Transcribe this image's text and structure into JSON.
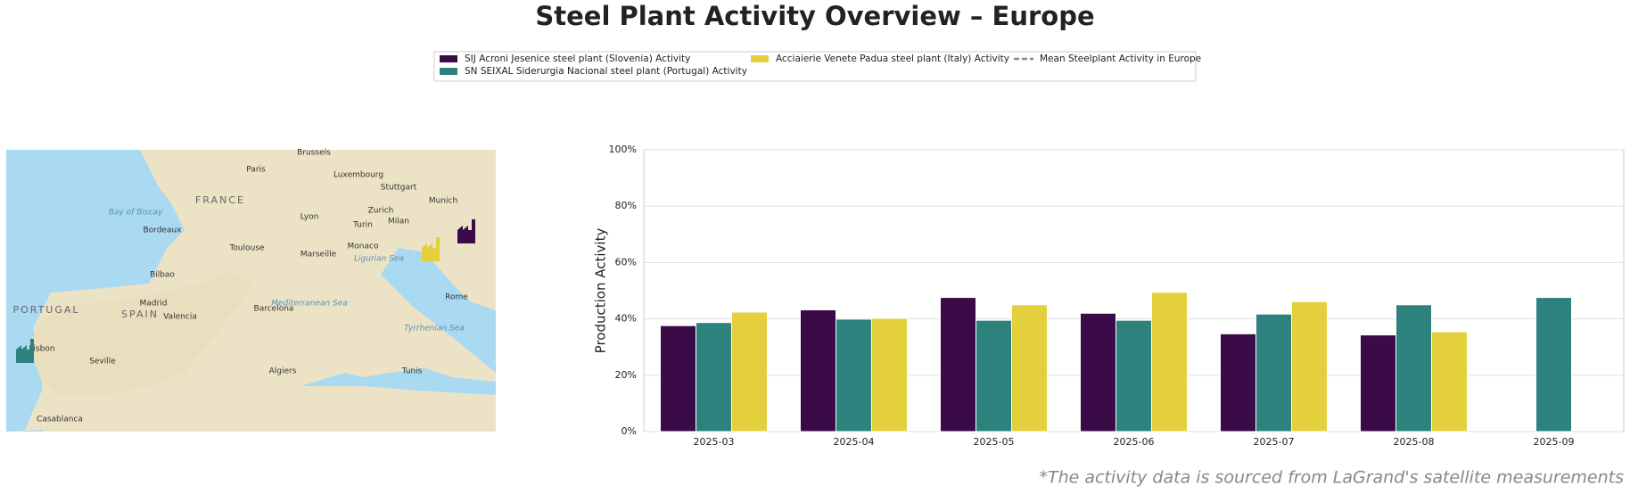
{
  "chart_data": {
    "type": "bar",
    "title": "Steel Plant Activity Overview – Europe",
    "ylabel": "Production Activity",
    "footnote": "*The activity data is sourced from LaGrand's satellite measurements",
    "categories": [
      "2025-03",
      "2025-04",
      "2025-05",
      "2025-06",
      "2025-07",
      "2025-08",
      "2025-09"
    ],
    "series": [
      {
        "name": "SIJ Acroni Jesenice steel plant (Slovenia) Activity",
        "color": "#3b0b47",
        "values": [
          37.6,
          43.2,
          47.6,
          42,
          34.7,
          34.3,
          null
        ]
      },
      {
        "name": "SN SEIXAL Siderurgia Nacional steel plant (Portugal) Activity",
        "color": "#2e827e",
        "values": [
          38.7,
          39.9,
          39.5,
          39.5,
          41.7,
          45,
          47.6
        ]
      },
      {
        "name": "Acciaierie Venete Padua steel plant (Italy) Activity",
        "color": "#e3d03c",
        "values": [
          42.4,
          40.2,
          45,
          49.4,
          46.1,
          35.4,
          null
        ]
      },
      {
        "name": "Mean Steelplant Activity in Europe",
        "color": "#888888",
        "dashed": true,
        "values": [
          null,
          null,
          null,
          null,
          null,
          null,
          null
        ]
      }
    ],
    "ylim": [
      0,
      100
    ],
    "yticks": [
      {
        "value": 0,
        "label": "0%"
      },
      {
        "value": 20,
        "label": "20%"
      },
      {
        "value": 40,
        "label": "40%"
      },
      {
        "value": 60,
        "label": "60%"
      },
      {
        "value": 80,
        "label": "80%"
      },
      {
        "value": 100,
        "label": "100%"
      }
    ],
    "grid": true,
    "legend": "top"
  },
  "map": {
    "labels": [
      "FRANCE",
      "SPAIN",
      "PORTUGAL",
      "Paris",
      "Lyon",
      "Bordeaux",
      "Toulouse",
      "Marseille",
      "Madrid",
      "Barcelona",
      "Valencia",
      "Lisbon",
      "Seville",
      "Milan",
      "Turin",
      "Monaco",
      "Rome",
      "Algiers",
      "Tunis",
      "Bay of Biscay",
      "Mediterranean Sea",
      "Ligurian Sea",
      "Tyrrhenian Sea",
      "Brussels",
      "Luxembourg",
      "Munich",
      "Zurich",
      "Stuttgart",
      "Bilbao",
      "Casablanca"
    ]
  }
}
